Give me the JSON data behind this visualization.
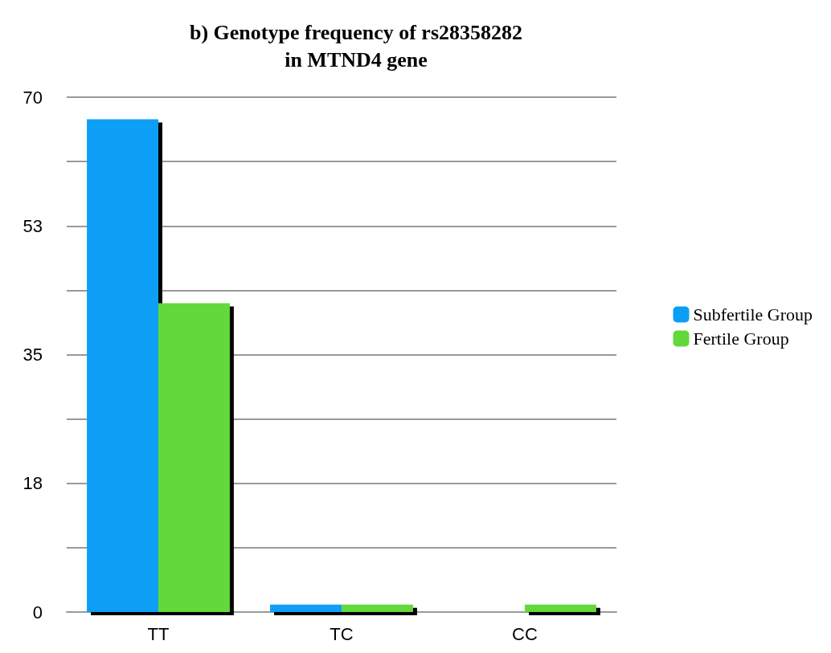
{
  "chart_data": {
    "type": "bar",
    "title": "b) Genotype frequency of rs28358282\nin MTND4 gene",
    "categories": [
      "TT",
      "TC",
      "CC"
    ],
    "series": [
      {
        "name": "Subfertile Group",
        "color": "#0a9ff5",
        "values": [
          67,
          1,
          0
        ]
      },
      {
        "name": "Fertile Group",
        "color": "#62d83a",
        "values": [
          42,
          1,
          1
        ]
      }
    ],
    "ylim": [
      0,
      70
    ],
    "yticks": [
      0,
      {
        "value": 8.75,
        "label": null
      },
      {
        "value": 17.5,
        "label": "18"
      },
      {
        "value": 26.25,
        "label": null
      },
      35,
      {
        "value": 43.75,
        "label": null
      },
      {
        "value": 52.5,
        "label": "53"
      },
      {
        "value": 61.25,
        "label": null
      },
      70
    ],
    "grid": "y",
    "legend": "right"
  }
}
